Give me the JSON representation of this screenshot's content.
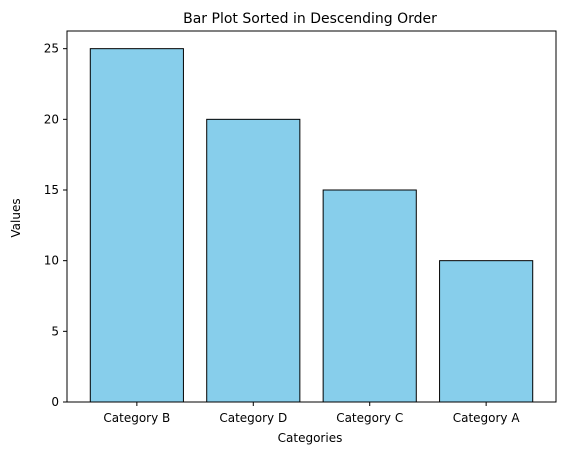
{
  "chart_data": {
    "type": "bar",
    "title": "Bar Plot Sorted in Descending Order",
    "xlabel": "Categories",
    "ylabel": "Values",
    "categories": [
      "Category B",
      "Category D",
      "Category C",
      "Category A"
    ],
    "values": [
      25,
      20,
      15,
      10
    ],
    "ylim": [
      0,
      26.25
    ],
    "yticks": [
      0,
      5,
      10,
      15,
      20,
      25
    ],
    "grid": false,
    "legend": "none",
    "colors": {
      "bar_fill": "#87CEEB",
      "bar_edge": "#000000",
      "axes": "#000000",
      "background": "#ffffff"
    }
  }
}
